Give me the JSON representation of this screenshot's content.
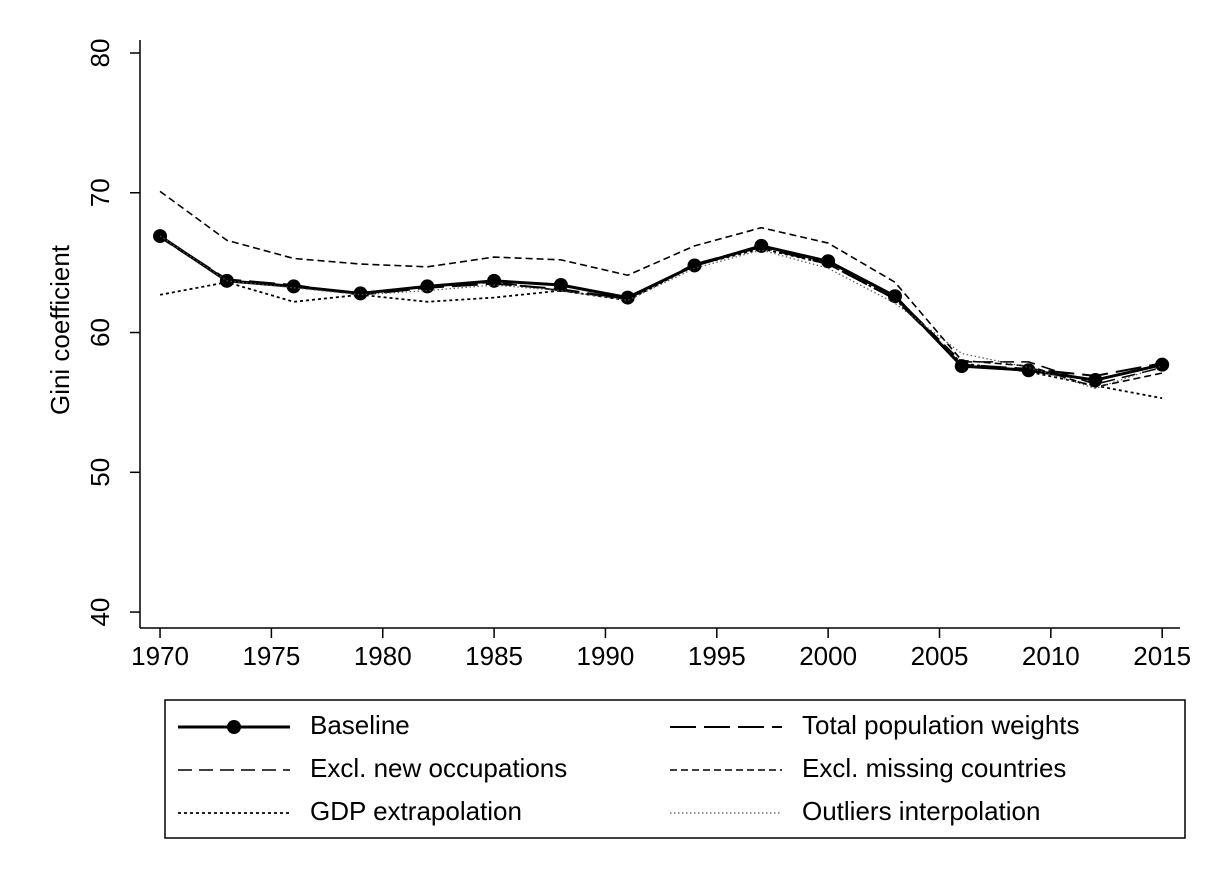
{
  "chart_data": {
    "type": "line",
    "y_label": "Gini coefficient",
    "x": [
      1970,
      1973,
      1976,
      1979,
      1982,
      1985,
      1988,
      1991,
      1994,
      1997,
      2000,
      2003,
      2006,
      2009,
      2012,
      2015
    ],
    "xlim": [
      1969.1,
      2015.8
    ],
    "xticks": [
      1970,
      1975,
      1980,
      1985,
      1990,
      1995,
      2000,
      2005,
      2010,
      2015
    ],
    "ylim": [
      38.86,
      80.93
    ],
    "yticks": [
      40,
      50,
      60,
      70,
      80
    ],
    "series": [
      {
        "name": "Baseline",
        "color": "#000000",
        "dash": "none",
        "width": 3,
        "marker": "circle",
        "values": [
          66.9,
          63.7,
          63.3,
          62.8,
          63.3,
          63.7,
          63.4,
          62.5,
          64.8,
          66.2,
          65.1,
          62.6,
          57.6,
          57.3,
          56.6,
          57.7
        ]
      },
      {
        "name": "Total population weights",
        "color": "#000000",
        "dash": "26 8",
        "width": 2,
        "values": [
          66.9,
          63.8,
          63.4,
          62.7,
          63.2,
          63.5,
          63.1,
          62.4,
          64.9,
          66.1,
          64.9,
          62.4,
          57.7,
          57.4,
          56.9,
          57.8
        ]
      },
      {
        "name": "Excl. new occupations",
        "color": "#000000",
        "dash": "14 7",
        "width": 1.6,
        "values": [
          66.8,
          63.7,
          63.3,
          62.8,
          63.3,
          63.6,
          63.0,
          62.4,
          64.9,
          66.2,
          65.0,
          62.6,
          57.9,
          57.9,
          56.3,
          57.5
        ]
      },
      {
        "name": "Excl. missing countries",
        "color": "#000000",
        "dash": "7 4",
        "width": 1.6,
        "values": [
          70.1,
          66.6,
          65.3,
          64.9,
          64.7,
          65.4,
          65.2,
          64.1,
          66.2,
          67.5,
          66.4,
          63.6,
          58.0,
          57.6,
          56.1,
          57.1
        ]
      },
      {
        "name": "GDP extrapolation",
        "color": "#000000",
        "dash": "3 3",
        "width": 1.8,
        "values": [
          62.7,
          63.6,
          62.2,
          62.7,
          62.2,
          62.5,
          63.0,
          62.3,
          64.8,
          66.0,
          64.9,
          62.4,
          57.8,
          57.2,
          56.2,
          55.3
        ]
      },
      {
        "name": "Outliers interpolation",
        "color": "#555555",
        "dash": "1.5 2.5",
        "width": 1.2,
        "values": [
          66.9,
          63.7,
          63.2,
          62.7,
          63.0,
          63.4,
          63.0,
          62.3,
          64.6,
          65.9,
          64.6,
          62.1,
          58.5,
          57.5,
          56.0,
          57.6
        ]
      }
    ]
  }
}
